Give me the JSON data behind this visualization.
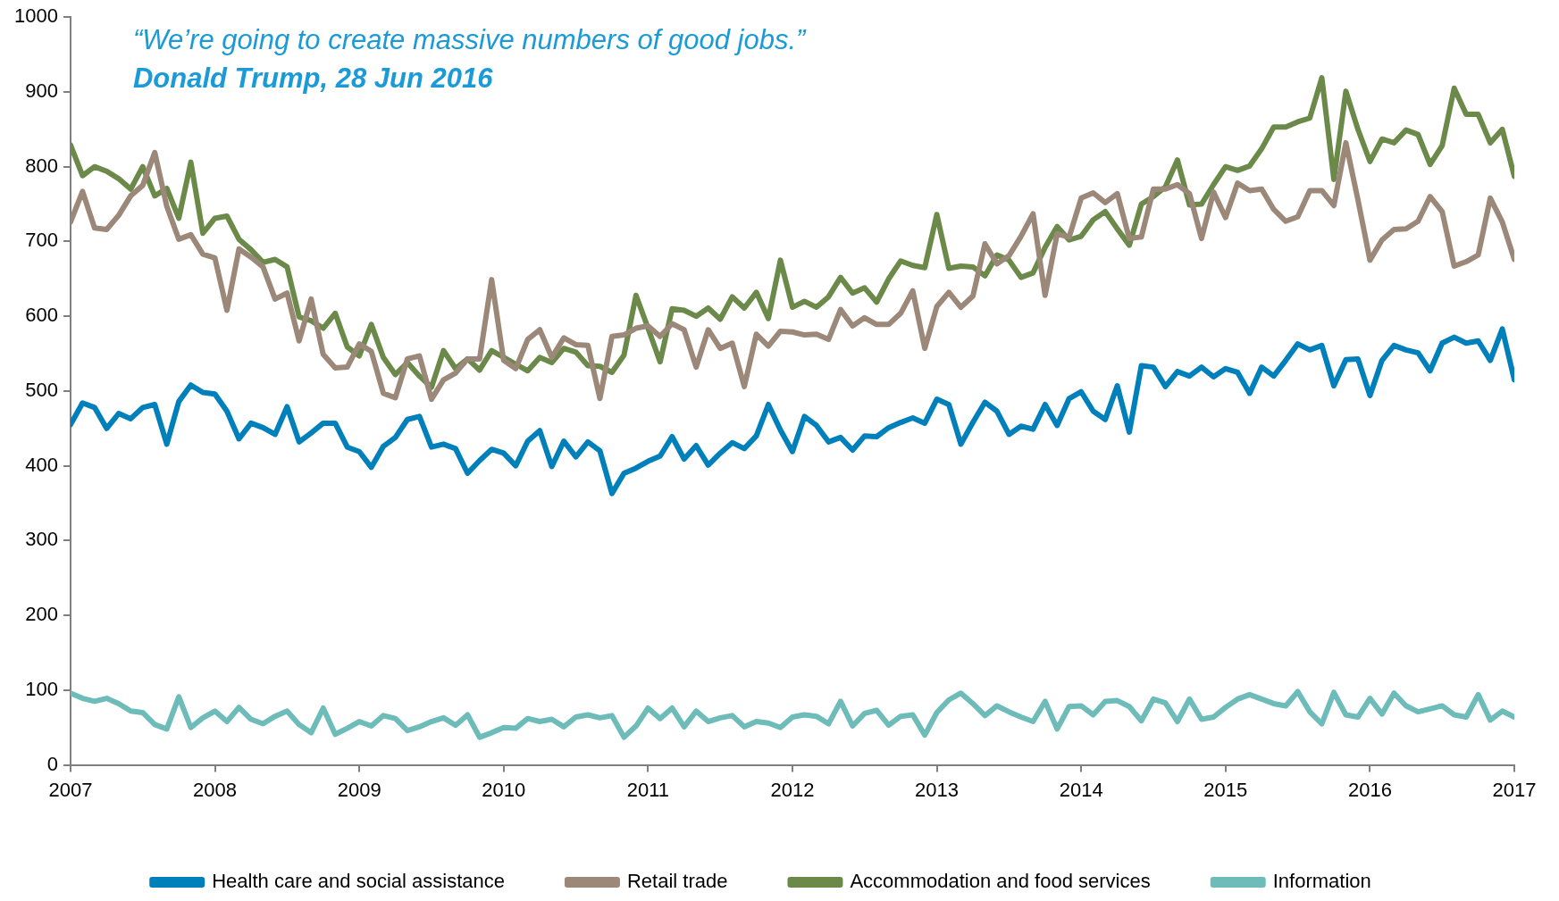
{
  "chart_data": {
    "type": "line",
    "annotations": [
      "“We’re going to create massive numbers of good jobs.”",
      "Donald Trump, 28 Jun 2016"
    ],
    "x": [
      "2007-01",
      "2007-02",
      "2007-03",
      "2007-04",
      "2007-05",
      "2007-06",
      "2007-07",
      "2007-08",
      "2007-09",
      "2007-10",
      "2007-11",
      "2007-12",
      "2008-01",
      "2008-02",
      "2008-03",
      "2008-04",
      "2008-05",
      "2008-06",
      "2008-07",
      "2008-08",
      "2008-09",
      "2008-10",
      "2008-11",
      "2008-12",
      "2009-01",
      "2009-02",
      "2009-03",
      "2009-04",
      "2009-05",
      "2009-06",
      "2009-07",
      "2009-08",
      "2009-09",
      "2009-10",
      "2009-11",
      "2009-12",
      "2010-01",
      "2010-02",
      "2010-03",
      "2010-04",
      "2010-05",
      "2010-06",
      "2010-07",
      "2010-08",
      "2010-09",
      "2010-10",
      "2010-11",
      "2010-12",
      "2011-01",
      "2011-02",
      "2011-03",
      "2011-04",
      "2011-05",
      "2011-06",
      "2011-07",
      "2011-08",
      "2011-09",
      "2011-10",
      "2011-11",
      "2011-12",
      "2012-01",
      "2012-02",
      "2012-03",
      "2012-04",
      "2012-05",
      "2012-06",
      "2012-07",
      "2012-08",
      "2012-09",
      "2012-10",
      "2012-11",
      "2012-12",
      "2013-01",
      "2013-02",
      "2013-03",
      "2013-04",
      "2013-05",
      "2013-06",
      "2013-07",
      "2013-08",
      "2013-09",
      "2013-10",
      "2013-11",
      "2013-12",
      "2014-01",
      "2014-02",
      "2014-03",
      "2014-04",
      "2014-05",
      "2014-06",
      "2014-07",
      "2014-08",
      "2014-09",
      "2014-10",
      "2014-11",
      "2014-12",
      "2015-01",
      "2015-02",
      "2015-03",
      "2015-04",
      "2015-05",
      "2015-06",
      "2015-07",
      "2015-08",
      "2015-09",
      "2015-10",
      "2015-11",
      "2015-12",
      "2016-01",
      "2016-02",
      "2016-03",
      "2016-04",
      "2016-05",
      "2016-06",
      "2016-07",
      "2016-08",
      "2016-09",
      "2016-10",
      "2016-11",
      "2016-12",
      "2017-01"
    ],
    "series": [
      {
        "name": "Health care and social assistance",
        "color": "#0080bb",
        "values": [
          455,
          484,
          478,
          450,
          470,
          463,
          478,
          482,
          429,
          486,
          508,
          498,
          496,
          473,
          436,
          457,
          451,
          442,
          479,
          432,
          444,
          457,
          457,
          425,
          419,
          398,
          426,
          438,
          462,
          466,
          425,
          429,
          423,
          390,
          407,
          422,
          417,
          400,
          433,
          447,
          399,
          433,
          412,
          432,
          420,
          363,
          390,
          397,
          406,
          413,
          439,
          409,
          427,
          401,
          417,
          431,
          423,
          440,
          482,
          448,
          419,
          466,
          454,
          432,
          438,
          421,
          440,
          439,
          451,
          458,
          464,
          457,
          489,
          482,
          429,
          458,
          485,
          473,
          442,
          453,
          449,
          482,
          454,
          490,
          499,
          473,
          462,
          507,
          445,
          534,
          532,
          506,
          526,
          520,
          532,
          519,
          530,
          525,
          497,
          532,
          520,
          541,
          563,
          555,
          561,
          507,
          542,
          543,
          494,
          541,
          561,
          555,
          551,
          527,
          564,
          572,
          564,
          567,
          541,
          583,
          515
        ]
      },
      {
        "name": "Retail trade",
        "color": "#9c8878",
        "values": [
          726,
          767,
          718,
          716,
          735,
          761,
          775,
          819,
          747,
          703,
          709,
          683,
          678,
          608,
          690,
          679,
          666,
          623,
          631,
          567,
          623,
          549,
          531,
          532,
          563,
          553,
          497,
          491,
          543,
          547,
          489,
          515,
          524,
          543,
          543,
          649,
          541,
          530,
          569,
          582,
          545,
          571,
          562,
          561,
          490,
          573,
          575,
          584,
          587,
          573,
          590,
          582,
          532,
          582,
          557,
          564,
          506,
          576,
          560,
          580,
          579,
          575,
          576,
          569,
          609,
          587,
          598,
          589,
          589,
          604,
          634,
          557,
          613,
          632,
          612,
          627,
          697,
          670,
          681,
          707,
          737,
          628,
          710,
          706,
          758,
          765,
          752,
          764,
          704,
          706,
          770,
          770,
          776,
          764,
          704,
          766,
          732,
          778,
          768,
          770,
          743,
          727,
          733,
          768,
          768,
          748,
          832,
          756,
          675,
          702,
          716,
          717,
          727,
          760,
          740,
          667,
          673,
          682,
          758,
          726,
          676
        ]
      },
      {
        "name": "Accommodation and food services",
        "color": "#6b8a4a",
        "values": [
          829,
          788,
          800,
          794,
          784,
          770,
          800,
          761,
          771,
          731,
          806,
          711,
          731,
          734,
          703,
          689,
          672,
          676,
          666,
          599,
          594,
          584,
          604,
          559,
          547,
          589,
          545,
          522,
          538,
          520,
          505,
          554,
          530,
          543,
          528,
          554,
          545,
          536,
          527,
          545,
          538,
          557,
          552,
          534,
          533,
          525,
          548,
          628,
          584,
          539,
          610,
          608,
          600,
          611,
          596,
          626,
          611,
          632,
          597,
          675,
          612,
          620,
          612,
          626,
          652,
          631,
          638,
          619,
          650,
          674,
          668,
          665,
          736,
          664,
          667,
          666,
          654,
          682,
          675,
          652,
          658,
          692,
          720,
          702,
          707,
          729,
          740,
          717,
          695,
          750,
          760,
          773,
          809,
          749,
          750,
          776,
          800,
          795,
          801,
          824,
          853,
          853,
          860,
          865,
          919,
          783,
          901,
          850,
          807,
          837,
          832,
          849,
          843,
          803,
          828,
          905,
          870,
          870,
          832,
          850,
          787
        ]
      },
      {
        "name": "Information",
        "color": "#6dbcb9",
        "values": [
          96,
          89,
          85,
          89,
          82,
          72,
          70,
          54,
          48,
          91,
          50,
          63,
          72,
          58,
          77,
          61,
          55,
          65,
          72,
          54,
          43,
          76,
          41,
          49,
          58,
          52,
          66,
          62,
          46,
          51,
          58,
          63,
          53,
          67,
          37,
          43,
          50,
          49,
          62,
          58,
          61,
          51,
          64,
          67,
          63,
          66,
          37,
          52,
          76,
          62,
          76,
          51,
          72,
          58,
          63,
          66,
          51,
          58,
          56,
          50,
          64,
          67,
          65,
          55,
          85,
          52,
          69,
          73,
          53,
          65,
          67,
          40,
          70,
          87,
          96,
          82,
          66,
          79,
          71,
          64,
          58,
          85,
          48,
          78,
          79,
          67,
          85,
          86,
          78,
          59,
          88,
          83,
          58,
          88,
          61,
          64,
          77,
          88,
          94,
          88,
          82,
          79,
          98,
          71,
          55,
          97,
          67,
          64,
          89,
          68,
          96,
          79,
          71,
          75,
          79,
          67,
          64,
          94,
          60,
          72,
          64
        ]
      }
    ],
    "xlim": [
      "2007-01",
      "2017-01"
    ],
    "xticks": [
      "2007",
      "2008",
      "2009",
      "2010",
      "2011",
      "2012",
      "2013",
      "2014",
      "2015",
      "2016",
      "2017"
    ],
    "ylim": [
      0,
      1000
    ],
    "yticks": [
      0,
      100,
      200,
      300,
      400,
      500,
      600,
      700,
      800,
      900,
      1000
    ],
    "grid": false,
    "legend": "bottom"
  }
}
